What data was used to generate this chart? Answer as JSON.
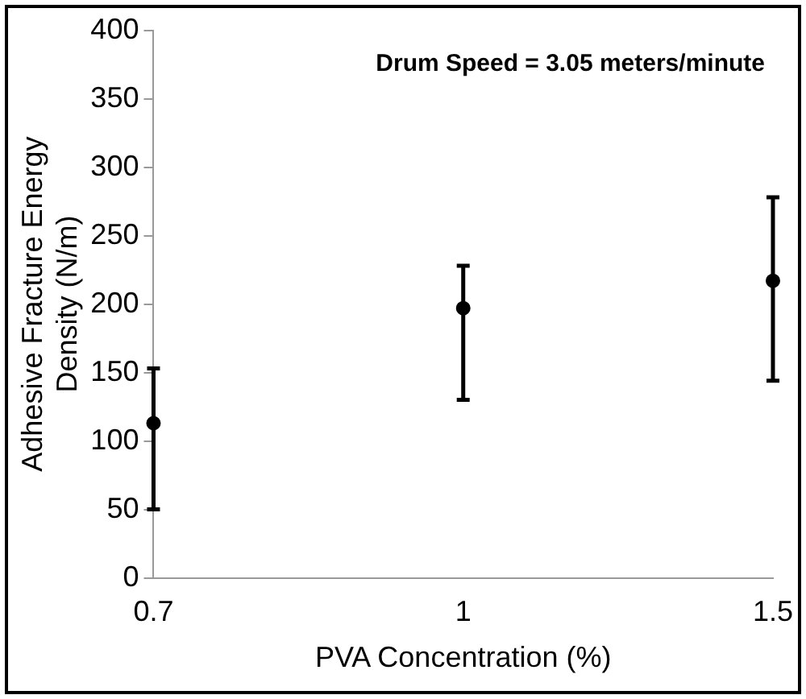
{
  "chart_data": {
    "type": "scatter",
    "xlabel": "PVA Concentration (%)",
    "ylabel": "Adhesive Fracture Energy Density (N/m)",
    "annotations": [
      "Drum Speed = 3.05 meters/minute"
    ],
    "categories": [
      "0.7",
      "1",
      "1.5"
    ],
    "values": [
      113,
      197,
      217
    ],
    "errors": [
      [
        50,
        153
      ],
      [
        130,
        228
      ],
      [
        144,
        278
      ]
    ],
    "color": "#000000",
    "marker": "circle",
    "ylim": [
      0,
      400
    ],
    "yticks": [
      0,
      50,
      100,
      150,
      200,
      250,
      300,
      350,
      400
    ],
    "grid": false,
    "legend": false
  }
}
